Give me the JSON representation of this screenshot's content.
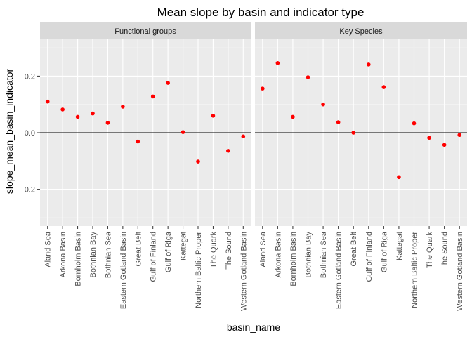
{
  "chart_data": {
    "type": "scatter",
    "title": "Mean slope by basin and indicator type",
    "xlabel": "basin_name",
    "ylabel": "slope_mean_basin_indicator",
    "ylim": [
      -0.33,
      0.33
    ],
    "y_ticks": [
      -0.2,
      0.0,
      0.2
    ],
    "y_tick_labels": [
      "-0.2",
      "0.0",
      "0.2"
    ],
    "hline": 0,
    "grid": true,
    "point_color": "#ff0000",
    "facets": [
      {
        "label": "Functional groups",
        "categories": [
          "Aland Sea",
          "Arkona Basin",
          "Bornholm Basin",
          "Bothnian Bay",
          "Bothnian Sea",
          "Eastern Gotland Basin",
          "Great Belt",
          "Gulf of Finland",
          "Gulf of Riga",
          "Kattegat",
          "Northern Baltic Proper",
          "The Quark",
          "The Sound",
          "Western Gotland Basin"
        ],
        "values": [
          0.11,
          0.082,
          0.056,
          0.068,
          0.035,
          0.092,
          -0.031,
          0.128,
          0.176,
          0.002,
          -0.102,
          0.06,
          -0.064,
          -0.013
        ]
      },
      {
        "label": "Key Species",
        "categories": [
          "Aland Sea",
          "Arkona Basin",
          "Bornholm Basin",
          "Bothnian Bay",
          "Bothnian Sea",
          "Eastern Gotland Basin",
          "Great Belt",
          "Gulf of Finland",
          "Gulf of Riga",
          "Kattegat",
          "Northern Baltic Proper",
          "The Quark",
          "The Sound",
          "Western Gotland Basin"
        ],
        "values": [
          0.156,
          0.246,
          0.056,
          0.196,
          0.1,
          0.037,
          0.0,
          0.241,
          0.161,
          -0.157,
          0.033,
          -0.018,
          -0.043,
          -0.008
        ]
      }
    ]
  }
}
